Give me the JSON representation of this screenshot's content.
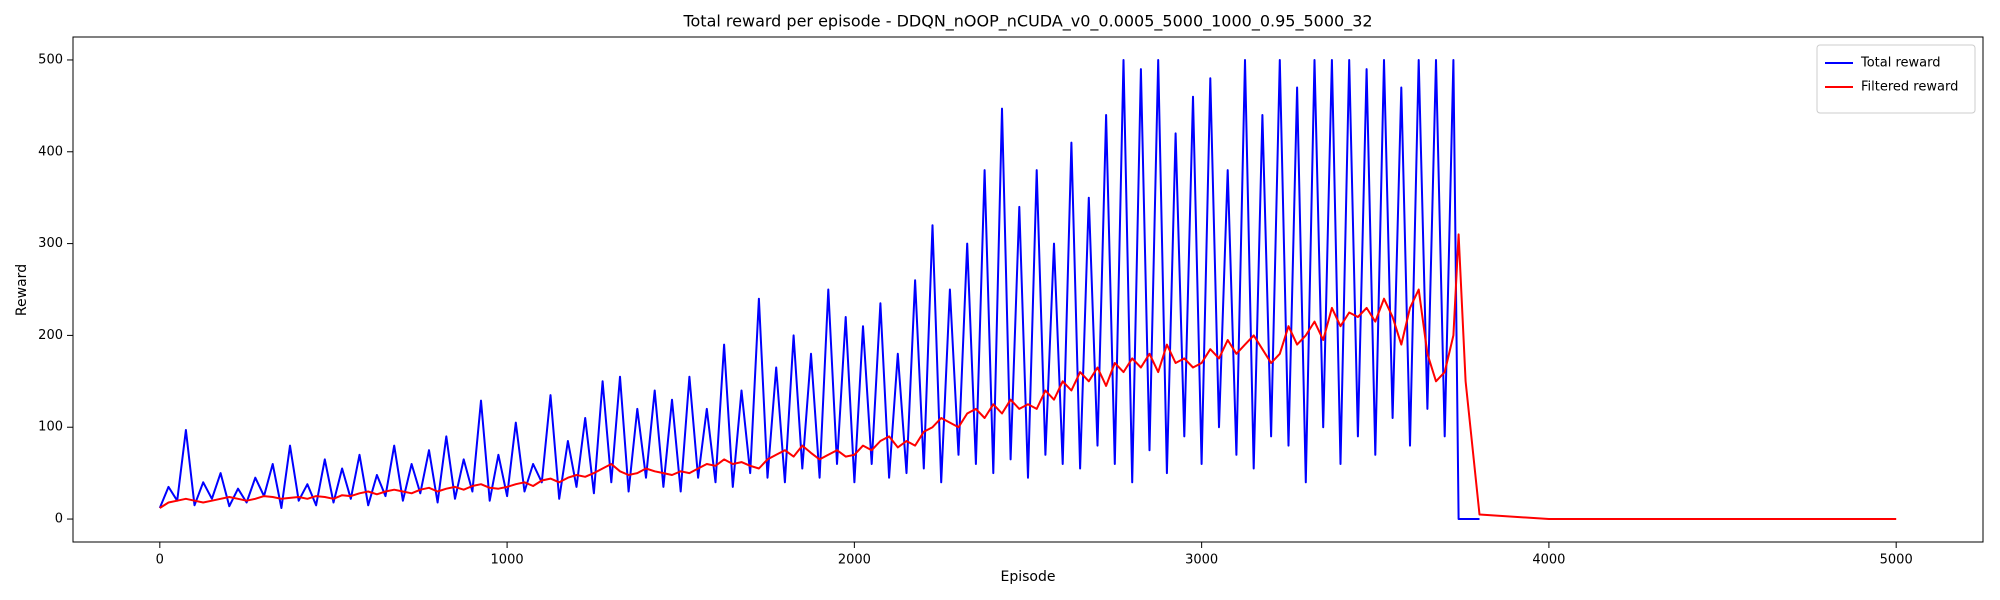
{
  "chart_data": {
    "type": "line",
    "title": "Total reward per episode - DDQN_nOOP_nCUDA_v0_0.0005_5000_1000_0.95_5000_32",
    "xlabel": "Episode",
    "ylabel": "Reward",
    "xlim": [
      -250,
      5250
    ],
    "ylim": [
      -25,
      525
    ],
    "xticks": [
      0,
      1000,
      2000,
      3000,
      4000,
      5000
    ],
    "yticks": [
      0,
      100,
      200,
      300,
      400,
      500
    ],
    "legend": "upper right",
    "grid": false,
    "x": [
      0,
      25,
      50,
      75,
      100,
      125,
      150,
      175,
      200,
      225,
      250,
      275,
      300,
      325,
      350,
      375,
      400,
      425,
      450,
      475,
      500,
      525,
      550,
      575,
      600,
      625,
      650,
      675,
      700,
      725,
      750,
      775,
      800,
      825,
      850,
      875,
      900,
      925,
      950,
      975,
      1000,
      1025,
      1050,
      1075,
      1100,
      1125,
      1150,
      1175,
      1200,
      1225,
      1250,
      1275,
      1300,
      1325,
      1350,
      1375,
      1400,
      1425,
      1450,
      1475,
      1500,
      1525,
      1550,
      1575,
      1600,
      1625,
      1650,
      1675,
      1700,
      1725,
      1750,
      1775,
      1800,
      1825,
      1850,
      1875,
      1900,
      1925,
      1950,
      1975,
      2000,
      2025,
      2050,
      2075,
      2100,
      2125,
      2150,
      2175,
      2200,
      2225,
      2250,
      2275,
      2300,
      2325,
      2350,
      2375,
      2400,
      2425,
      2450,
      2475,
      2500,
      2525,
      2550,
      2575,
      2600,
      2625,
      2650,
      2675,
      2700,
      2725,
      2750,
      2775,
      2800,
      2825,
      2850,
      2875,
      2900,
      2925,
      2950,
      2975,
      3000,
      3025,
      3050,
      3075,
      3100,
      3125,
      3150,
      3175,
      3200,
      3225,
      3250,
      3275,
      3300,
      3325,
      3350,
      3375,
      3400,
      3425,
      3450,
      3475,
      3500,
      3525,
      3550,
      3575,
      3600,
      3625,
      3650,
      3675,
      3700,
      3725,
      3740,
      3760,
      3800,
      4000,
      4500,
      5000
    ],
    "series": [
      {
        "name": "Total reward",
        "color": "#0000ff",
        "values": [
          12,
          35,
          20,
          97,
          15,
          40,
          22,
          50,
          14,
          33,
          18,
          45,
          25,
          60,
          12,
          80,
          20,
          38,
          15,
          65,
          18,
          55,
          22,
          70,
          15,
          48,
          25,
          80,
          20,
          60,
          28,
          75,
          18,
          90,
          22,
          65,
          30,
          129,
          20,
          70,
          25,
          105,
          30,
          60,
          40,
          135,
          22,
          85,
          35,
          110,
          28,
          150,
          40,
          155,
          30,
          120,
          45,
          140,
          35,
          130,
          30,
          155,
          45,
          120,
          40,
          190,
          35,
          140,
          50,
          240,
          45,
          165,
          40,
          200,
          55,
          180,
          45,
          250,
          60,
          220,
          40,
          210,
          60,
          235,
          45,
          180,
          50,
          260,
          55,
          320,
          40,
          250,
          70,
          300,
          60,
          380,
          50,
          447,
          65,
          340,
          45,
          380,
          70,
          300,
          60,
          410,
          55,
          350,
          80,
          440,
          60,
          500,
          40,
          490,
          75,
          500,
          50,
          420,
          90,
          460,
          60,
          480,
          100,
          380,
          70,
          500,
          55,
          440,
          90,
          500,
          80,
          470,
          40,
          500,
          100,
          500,
          60,
          500,
          90,
          490,
          70,
          500,
          110,
          470,
          80,
          500,
          120,
          500,
          90,
          500,
          0,
          0,
          0,
          null,
          null,
          null
        ]
      },
      {
        "name": "Filtered reward",
        "color": "#ff0000",
        "values": [
          12,
          18,
          20,
          22,
          20,
          18,
          20,
          22,
          24,
          22,
          20,
          22,
          25,
          24,
          22,
          23,
          24,
          22,
          25,
          24,
          22,
          26,
          25,
          28,
          30,
          27,
          30,
          32,
          30,
          28,
          32,
          34,
          30,
          33,
          35,
          32,
          36,
          38,
          34,
          33,
          35,
          38,
          40,
          36,
          42,
          44,
          40,
          45,
          48,
          46,
          50,
          55,
          60,
          52,
          48,
          50,
          55,
          52,
          50,
          48,
          52,
          50,
          55,
          60,
          58,
          65,
          60,
          62,
          58,
          55,
          65,
          70,
          75,
          68,
          80,
          72,
          65,
          70,
          75,
          68,
          70,
          80,
          75,
          85,
          90,
          78,
          85,
          80,
          95,
          100,
          110,
          105,
          100,
          115,
          120,
          110,
          125,
          115,
          130,
          120,
          125,
          120,
          140,
          130,
          150,
          140,
          160,
          150,
          165,
          145,
          170,
          160,
          175,
          165,
          180,
          160,
          190,
          170,
          175,
          165,
          170,
          185,
          175,
          195,
          180,
          190,
          200,
          185,
          170,
          180,
          210,
          190,
          200,
          215,
          195,
          230,
          210,
          225,
          220,
          230,
          215,
          240,
          220,
          190,
          230,
          250,
          180,
          150,
          160,
          200,
          310,
          150,
          5,
          0,
          0,
          0
        ]
      }
    ]
  }
}
